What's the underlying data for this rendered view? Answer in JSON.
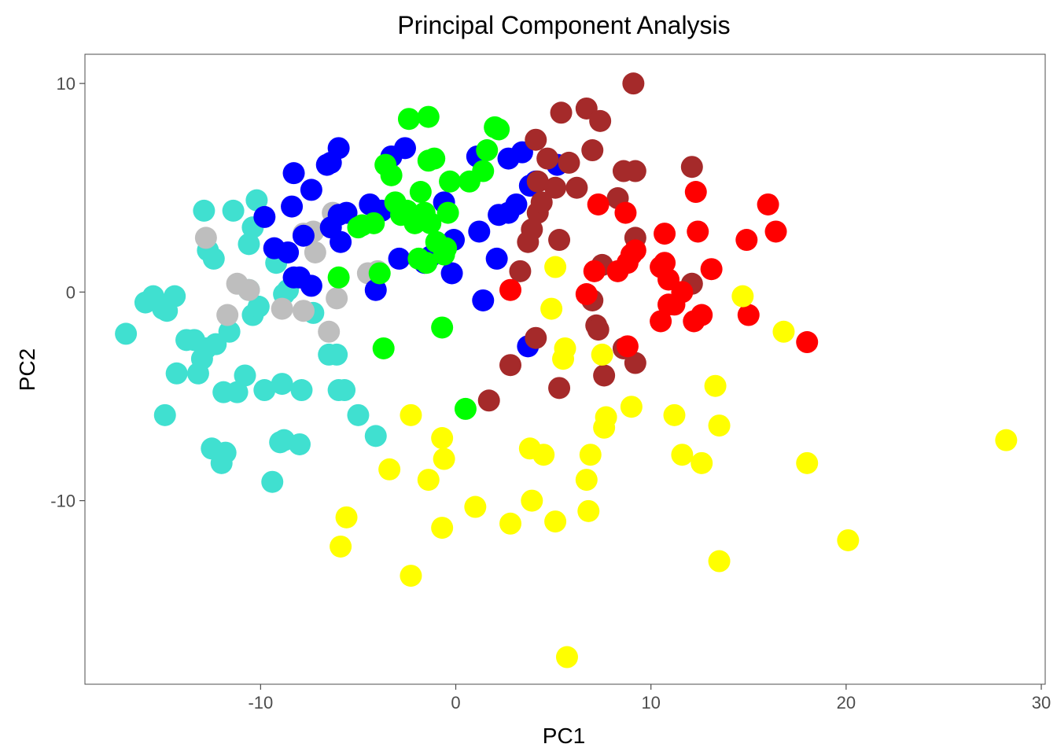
{
  "chart_data": {
    "type": "scatter",
    "title": "Principal Component Analysis",
    "xlabel": "PC1",
    "ylabel": "PC2",
    "xlim": [
      -19,
      30.2
    ],
    "ylim": [
      -18.8,
      11.4
    ],
    "xticks": [
      -10,
      0,
      10,
      20,
      30
    ],
    "yticks": [
      -10,
      0,
      10
    ],
    "xtick_labels": [
      "-10",
      "0",
      "10",
      "20",
      "30"
    ],
    "ytick_labels": [
      "-10",
      "0",
      "10"
    ],
    "grid": false,
    "legend": "none",
    "series": [
      {
        "color": "#40E0D0",
        "points": [
          [
            -16.9,
            -2
          ],
          [
            -15.9,
            -0.5
          ],
          [
            -15.5,
            -0.2
          ],
          [
            -15,
            -0.8
          ],
          [
            -14.8,
            -0.9
          ],
          [
            -14.4,
            -0.2
          ],
          [
            -14.3,
            -3.9
          ],
          [
            -13.8,
            -2.3
          ],
          [
            -13.4,
            -2.3
          ],
          [
            -13.2,
            -3.9
          ],
          [
            -13,
            -3.2
          ],
          [
            -12.9,
            3.9
          ],
          [
            -12.8,
            -2.7
          ],
          [
            -12.7,
            2
          ],
          [
            -12.4,
            1.6
          ],
          [
            -12.3,
            -2.5
          ],
          [
            -12.5,
            -7.5
          ],
          [
            -12,
            -8.2
          ],
          [
            -11.8,
            -7.7
          ],
          [
            -11.9,
            -4.8
          ],
          [
            -11.6,
            -1.9
          ],
          [
            -11.4,
            3.9
          ],
          [
            -11.2,
            -4.8
          ],
          [
            -10.8,
            -4
          ],
          [
            -10.6,
            2.3
          ],
          [
            -10.6,
            0.1
          ],
          [
            -10.4,
            -1.1
          ],
          [
            -10.4,
            3.1
          ],
          [
            -10.2,
            4.4
          ],
          [
            -10.1,
            -0.7
          ],
          [
            -9.8,
            -4.7
          ],
          [
            -9.4,
            -9.1
          ],
          [
            -9.2,
            1.4
          ],
          [
            -9,
            -7.2
          ],
          [
            -8.9,
            -4.4
          ],
          [
            -8.8,
            -7.1
          ],
          [
            -8.8,
            -0.1
          ],
          [
            -8.6,
            0.1
          ],
          [
            -8,
            -7.3
          ],
          [
            -7.9,
            -4.7
          ],
          [
            -7.3,
            -1
          ],
          [
            -6.5,
            -3
          ],
          [
            -6.1,
            -3
          ],
          [
            -6,
            -4.7
          ],
          [
            -5.7,
            -4.7
          ],
          [
            -5,
            -5.9
          ],
          [
            -4.1,
            -6.9
          ],
          [
            -14.9,
            -5.9
          ]
        ]
      },
      {
        "color": "#BEBEBE",
        "points": [
          [
            -12.8,
            2.6
          ],
          [
            -11.7,
            -1.1
          ],
          [
            -11.2,
            0.4
          ],
          [
            -10.6,
            0.1
          ],
          [
            -8.9,
            -0.8
          ],
          [
            -7.8,
            -0.9
          ],
          [
            -7.8,
            2.8
          ],
          [
            -7.3,
            2.9
          ],
          [
            -7.2,
            1.9
          ],
          [
            -6.5,
            -1.9
          ],
          [
            -6.3,
            3.8
          ],
          [
            -6.1,
            -0.3
          ],
          [
            -4.5,
            0.9
          ],
          [
            -4,
            1
          ]
        ]
      },
      {
        "color": "#0000FF",
        "points": [
          [
            -9.8,
            3.6
          ],
          [
            -9.3,
            2.1
          ],
          [
            -8.6,
            1.9
          ],
          [
            -8.4,
            4.1
          ],
          [
            -8.3,
            5.7
          ],
          [
            -8.3,
            0.7
          ],
          [
            -8,
            0.7
          ],
          [
            -7.8,
            2.7
          ],
          [
            -7.4,
            4.9
          ],
          [
            -7.4,
            0.3
          ],
          [
            -6.6,
            6.1
          ],
          [
            -6.4,
            6.2
          ],
          [
            -6.4,
            3.1
          ],
          [
            -6,
            6.9
          ],
          [
            -6,
            3.7
          ],
          [
            -5.9,
            2.4
          ],
          [
            -5.6,
            3.8
          ],
          [
            -4.4,
            4.2
          ],
          [
            -4.1,
            0.1
          ],
          [
            -3.8,
            3.9
          ],
          [
            -3.3,
            6.5
          ],
          [
            -2.9,
            1.6
          ],
          [
            -2.6,
            6.9
          ],
          [
            -1.6,
            1.4
          ],
          [
            -1.3,
            1.7
          ],
          [
            -0.6,
            4.3
          ],
          [
            -0.2,
            0.9
          ],
          [
            -0.1,
            2.5
          ],
          [
            1.2,
            2.9
          ],
          [
            1.1,
            6.5
          ],
          [
            2.1,
            1.6
          ],
          [
            2.2,
            3.7
          ],
          [
            2.7,
            3.8
          ],
          [
            2.7,
            6.4
          ],
          [
            3.1,
            4.2
          ],
          [
            3.4,
            6.7
          ],
          [
            3.8,
            5.1
          ],
          [
            4.1,
            5.3
          ],
          [
            5.2,
            6.1
          ],
          [
            3.7,
            -2.6
          ],
          [
            1.4,
            -0.4
          ]
        ]
      },
      {
        "color": "#00FF00",
        "points": [
          [
            -6,
            0.7
          ],
          [
            -5,
            3.1
          ],
          [
            -4.8,
            3.2
          ],
          [
            -4.2,
            3.3
          ],
          [
            -3.9,
            0.9
          ],
          [
            -3.7,
            -2.7
          ],
          [
            -3.6,
            6.1
          ],
          [
            -3.3,
            5.6
          ],
          [
            -3.1,
            4.3
          ],
          [
            -2.8,
            3.7
          ],
          [
            -2.5,
            3.9
          ],
          [
            -2.4,
            8.3
          ],
          [
            -2.1,
            3.3
          ],
          [
            -1.9,
            1.6
          ],
          [
            -1.8,
            4.8
          ],
          [
            -1.6,
            3.8
          ],
          [
            -1.5,
            1.4
          ],
          [
            -1.3,
            3.3
          ],
          [
            -1.4,
            6.3
          ],
          [
            -1.1,
            6.4
          ],
          [
            -1.4,
            8.4
          ],
          [
            -1,
            2.4
          ],
          [
            -0.6,
            1.8
          ],
          [
            -0.5,
            2.1
          ],
          [
            -0.4,
            3.8
          ],
          [
            -0.3,
            5.3
          ],
          [
            0.7,
            5.3
          ],
          [
            1.4,
            5.8
          ],
          [
            1.6,
            6.8
          ],
          [
            2,
            7.9
          ],
          [
            2.2,
            7.8
          ],
          [
            -0.7,
            -1.7
          ],
          [
            0.5,
            -5.6
          ]
        ]
      },
      {
        "color": "#A52A2A",
        "points": [
          [
            1.7,
            -5.2
          ],
          [
            2.8,
            -3.5
          ],
          [
            3.3,
            1
          ],
          [
            3.7,
            2.4
          ],
          [
            3.9,
            3
          ],
          [
            4.1,
            -2.2
          ],
          [
            4.2,
            3.8
          ],
          [
            4.1,
            7.3
          ],
          [
            4.4,
            4.3
          ],
          [
            4.7,
            6.4
          ],
          [
            5.1,
            5
          ],
          [
            5.3,
            2.5
          ],
          [
            5.3,
            -4.6
          ],
          [
            5.4,
            8.6
          ],
          [
            5.8,
            6.2
          ],
          [
            6.2,
            5
          ],
          [
            6.7,
            8.8
          ],
          [
            7,
            6.8
          ],
          [
            7,
            -0.4
          ],
          [
            7.2,
            -1.6
          ],
          [
            7.4,
            8.2
          ],
          [
            7.5,
            1.3
          ],
          [
            7.6,
            -4
          ],
          [
            8.3,
            4.5
          ],
          [
            8.6,
            5.8
          ],
          [
            9.2,
            5.8
          ],
          [
            9.2,
            2.6
          ],
          [
            9.2,
            -3.4
          ],
          [
            9.1,
            10
          ],
          [
            12.1,
            6
          ],
          [
            12.1,
            0.4
          ],
          [
            4.2,
            5.3
          ],
          [
            7.3,
            -1.8
          ],
          [
            8.6,
            -2.7
          ]
        ]
      },
      {
        "color": "#FF0000",
        "points": [
          [
            2.8,
            0.1
          ],
          [
            6.7,
            -0.1
          ],
          [
            7.1,
            1
          ],
          [
            7.3,
            4.2
          ],
          [
            8.3,
            1
          ],
          [
            8.7,
            3.8
          ],
          [
            8.8,
            -2.6
          ],
          [
            8.8,
            1.4
          ],
          [
            9,
            1.8
          ],
          [
            9.2,
            2
          ],
          [
            10.7,
            2.8
          ],
          [
            10.5,
            1.2
          ],
          [
            10.7,
            1.4
          ],
          [
            10.9,
            0.6
          ],
          [
            10.9,
            -0.6
          ],
          [
            10.5,
            -1.4
          ],
          [
            11.2,
            -0.6
          ],
          [
            11.6,
            0
          ],
          [
            12.2,
            -1.4
          ],
          [
            12.3,
            4.8
          ],
          [
            12.4,
            2.9
          ],
          [
            12.6,
            -1.1
          ],
          [
            13.1,
            1.1
          ],
          [
            14.9,
            2.5
          ],
          [
            15,
            -1.1
          ],
          [
            16,
            4.2
          ],
          [
            16.4,
            2.9
          ],
          [
            18,
            -2.4
          ]
        ]
      },
      {
        "color": "#FFFF00",
        "points": [
          [
            -5.9,
            -12.2
          ],
          [
            -5.6,
            -10.8
          ],
          [
            -3.4,
            -8.5
          ],
          [
            -2.3,
            -5.9
          ],
          [
            -2.3,
            -13.6
          ],
          [
            -1.4,
            -9
          ],
          [
            -0.7,
            -7
          ],
          [
            -0.6,
            -8
          ],
          [
            -0.7,
            -11.3
          ],
          [
            1,
            -10.3
          ],
          [
            2.8,
            -11.1
          ],
          [
            3.8,
            -7.5
          ],
          [
            3.9,
            -10
          ],
          [
            4.5,
            -7.8
          ],
          [
            5.1,
            -11
          ],
          [
            5.1,
            1.2
          ],
          [
            4.9,
            -0.8
          ],
          [
            5.5,
            -3.2
          ],
          [
            5.6,
            -2.7
          ],
          [
            5.7,
            -17.5
          ],
          [
            6.7,
            -9
          ],
          [
            6.8,
            -10.5
          ],
          [
            6.9,
            -7.8
          ],
          [
            7.5,
            -3
          ],
          [
            7.6,
            -6.5
          ],
          [
            7.7,
            -6
          ],
          [
            9,
            -5.5
          ],
          [
            11.2,
            -5.9
          ],
          [
            11.6,
            -7.8
          ],
          [
            12.6,
            -8.2
          ],
          [
            13.3,
            -4.5
          ],
          [
            13.5,
            -6.4
          ],
          [
            13.5,
            -12.9
          ],
          [
            14.7,
            -0.2
          ],
          [
            16.8,
            -1.9
          ],
          [
            18,
            -8.2
          ],
          [
            20.1,
            -11.9
          ],
          [
            28.2,
            -7.1
          ]
        ]
      }
    ]
  }
}
